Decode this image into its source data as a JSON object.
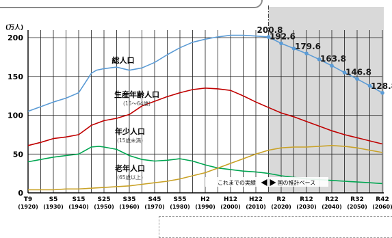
{
  "chart_data": {
    "type": "line",
    "unit_label": "(万人)",
    "xlim": [
      1920,
      2060
    ],
    "ylim": [
      0,
      200
    ],
    "y_ticks": [
      0,
      50,
      100,
      150,
      200
    ],
    "x_ticks": [
      {
        "era": "T9",
        "year": "(1920)",
        "x": 1920
      },
      {
        "era": "S5",
        "year": "(1930)",
        "x": 1930
      },
      {
        "era": "S15",
        "year": "(1940)",
        "x": 1940
      },
      {
        "era": "S25",
        "year": "(1950)",
        "x": 1950
      },
      {
        "era": "S35",
        "year": "(1960)",
        "x": 1960
      },
      {
        "era": "S45",
        "year": "(1970)",
        "x": 1970
      },
      {
        "era": "S55",
        "year": "(1980)",
        "x": 1980
      },
      {
        "era": "H2",
        "year": "(1990)",
        "x": 1990
      },
      {
        "era": "H12",
        "year": "(2000)",
        "x": 2000
      },
      {
        "era": "H22",
        "year": "(2010)",
        "x": 2010
      },
      {
        "era": "R2",
        "year": "(2020)",
        "x": 2020
      },
      {
        "era": "R12",
        "year": "(2030)",
        "x": 2030
      },
      {
        "era": "R22",
        "year": "(2040)",
        "x": 2040
      },
      {
        "era": "R32",
        "year": "(2050)",
        "x": 2050
      },
      {
        "era": "R42",
        "year": "(2060)",
        "x": 2060
      }
    ],
    "grid": true,
    "projection_start": 2015,
    "series": [
      {
        "name": "総人口",
        "color": "#5b9bd5",
        "points": [
          [
            1920,
            105
          ],
          [
            1925,
            111
          ],
          [
            1930,
            117
          ],
          [
            1935,
            122
          ],
          [
            1940,
            129
          ],
          [
            1945,
            154
          ],
          [
            1947,
            158
          ],
          [
            1950,
            160
          ],
          [
            1955,
            162
          ],
          [
            1960,
            158
          ],
          [
            1965,
            161
          ],
          [
            1970,
            168
          ],
          [
            1975,
            178
          ],
          [
            1980,
            187
          ],
          [
            1985,
            194
          ],
          [
            1990,
            198
          ],
          [
            1995,
            201
          ],
          [
            2000,
            203
          ],
          [
            2005,
            203
          ],
          [
            2010,
            202
          ],
          [
            2015,
            200.8
          ],
          [
            2020,
            192.6
          ],
          [
            2025,
            186
          ],
          [
            2030,
            179.6
          ],
          [
            2035,
            172
          ],
          [
            2040,
            163.8
          ],
          [
            2045,
            155
          ],
          [
            2050,
            146.8
          ],
          [
            2055,
            138
          ],
          [
            2060,
            128.8
          ]
        ]
      },
      {
        "name": "生産年齢人口",
        "color": "#c00000",
        "points": [
          [
            1920,
            61
          ],
          [
            1925,
            65
          ],
          [
            1930,
            70
          ],
          [
            1935,
            72
          ],
          [
            1940,
            75
          ],
          [
            1945,
            87
          ],
          [
            1950,
            93
          ],
          [
            1955,
            96
          ],
          [
            1960,
            101
          ],
          [
            1965,
            112
          ],
          [
            1970,
            118
          ],
          [
            1975,
            124
          ],
          [
            1980,
            129
          ],
          [
            1985,
            133
          ],
          [
            1990,
            135
          ],
          [
            1995,
            134
          ],
          [
            2000,
            132
          ],
          [
            2005,
            125
          ],
          [
            2010,
            117
          ],
          [
            2015,
            110
          ],
          [
            2020,
            103
          ],
          [
            2025,
            98
          ],
          [
            2030,
            92
          ],
          [
            2035,
            86
          ],
          [
            2040,
            80
          ],
          [
            2045,
            75
          ],
          [
            2050,
            71
          ],
          [
            2055,
            67
          ],
          [
            2060,
            63
          ]
        ]
      },
      {
        "name": "年少人口",
        "color": "#00a651",
        "points": [
          [
            1920,
            40
          ],
          [
            1925,
            43
          ],
          [
            1930,
            46
          ],
          [
            1935,
            48
          ],
          [
            1940,
            50
          ],
          [
            1945,
            59
          ],
          [
            1948,
            60
          ],
          [
            1950,
            59
          ],
          [
            1955,
            56
          ],
          [
            1960,
            48
          ],
          [
            1965,
            43
          ],
          [
            1970,
            41
          ],
          [
            1975,
            42
          ],
          [
            1980,
            44
          ],
          [
            1985,
            41
          ],
          [
            1990,
            36
          ],
          [
            1995,
            32
          ],
          [
            2000,
            30
          ],
          [
            2005,
            28
          ],
          [
            2010,
            27
          ],
          [
            2015,
            25
          ],
          [
            2020,
            22
          ],
          [
            2025,
            20
          ],
          [
            2030,
            18
          ],
          [
            2035,
            17
          ],
          [
            2040,
            16
          ],
          [
            2045,
            15
          ],
          [
            2050,
            14
          ],
          [
            2055,
            13
          ],
          [
            2060,
            12
          ]
        ]
      },
      {
        "name": "老年人口",
        "color": "#c9a227",
        "points": [
          [
            1920,
            4
          ],
          [
            1925,
            4
          ],
          [
            1930,
            4
          ],
          [
            1935,
            5
          ],
          [
            1940,
            5
          ],
          [
            1945,
            6
          ],
          [
            1950,
            7
          ],
          [
            1955,
            8
          ],
          [
            1960,
            9
          ],
          [
            1965,
            11
          ],
          [
            1970,
            13
          ],
          [
            1975,
            15
          ],
          [
            1980,
            18
          ],
          [
            1985,
            22
          ],
          [
            1990,
            26
          ],
          [
            1995,
            32
          ],
          [
            2000,
            38
          ],
          [
            2005,
            44
          ],
          [
            2010,
            50
          ],
          [
            2015,
            55
          ],
          [
            2020,
            58
          ],
          [
            2025,
            59
          ],
          [
            2030,
            59
          ],
          [
            2035,
            60
          ],
          [
            2040,
            61
          ],
          [
            2045,
            60
          ],
          [
            2050,
            58
          ],
          [
            2055,
            55
          ],
          [
            2060,
            52
          ]
        ]
      }
    ],
    "series_labels": [
      {
        "key": "total",
        "title": "総人口",
        "sub": ""
      },
      {
        "key": "working",
        "title": "生産年齢人口",
        "sub": "(15～64歳)"
      },
      {
        "key": "young",
        "title": "年少人口",
        "sub": "(15歳未満)"
      },
      {
        "key": "elderly",
        "title": "老年人口",
        "sub": "(65歳以上)"
      }
    ],
    "data_labels": [
      {
        "x": 2015,
        "y": 200.8,
        "text": "200.8"
      },
      {
        "x": 2020,
        "y": 192.6,
        "text": "192.6"
      },
      {
        "x": 2030,
        "y": 179.6,
        "text": "179.6"
      },
      {
        "x": 2040,
        "y": 163.8,
        "text": "163.8"
      },
      {
        "x": 2050,
        "y": 146.8,
        "text": "146.8"
      },
      {
        "x": 2060,
        "y": 128.8,
        "text": "128.8"
      }
    ],
    "annotations": {
      "actual": "これまでの実績",
      "projection": "国の推計ベース"
    }
  }
}
